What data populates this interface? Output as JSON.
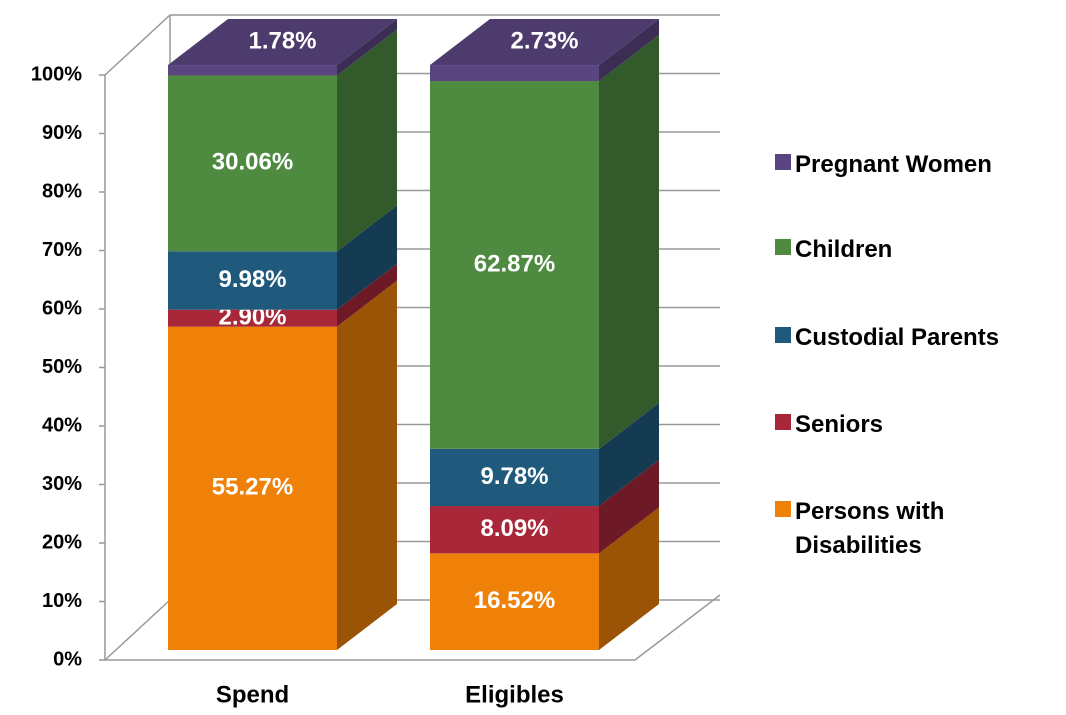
{
  "chart_data": {
    "type": "bar3d_stacked",
    "categories": [
      "Spend",
      "Eligibles"
    ],
    "series": [
      {
        "name": "Persons with Disabilities",
        "color": "#ef8008",
        "values": [
          55.27,
          16.52
        ],
        "value_labels": [
          "55.27%",
          "16.52%"
        ]
      },
      {
        "name": "Seniors",
        "color": "#a8283a",
        "values": [
          2.9,
          8.09
        ],
        "value_labels": [
          "2.90%",
          "8.09%"
        ]
      },
      {
        "name": "Custodial Parents",
        "color": "#1f5a7c",
        "values": [
          9.98,
          9.78
        ],
        "value_labels": [
          "9.98%",
          "9.78%"
        ]
      },
      {
        "name": "Children",
        "color": "#4f8a41",
        "values": [
          30.06,
          62.87
        ],
        "value_labels": [
          "30.06%",
          "62.87%"
        ]
      },
      {
        "name": "Pregnant Women",
        "color": "#5b4580",
        "values": [
          1.78,
          2.73
        ],
        "value_labels": [
          "1.78%",
          "2.73%"
        ]
      }
    ],
    "ylim": [
      0,
      100
    ],
    "yticks": [
      {
        "value": 0,
        "label": "0%"
      },
      {
        "value": 10,
        "label": "10%"
      },
      {
        "value": 20,
        "label": "20%"
      },
      {
        "value": 30,
        "label": "30%"
      },
      {
        "value": 40,
        "label": "40%"
      },
      {
        "value": 50,
        "label": "50%"
      },
      {
        "value": 60,
        "label": "60%"
      },
      {
        "value": 70,
        "label": "70%"
      },
      {
        "value": 80,
        "label": "80%"
      },
      {
        "value": 90,
        "label": "90%"
      },
      {
        "value": 100,
        "label": "100%"
      }
    ],
    "grid": true,
    "legend": "right"
  }
}
